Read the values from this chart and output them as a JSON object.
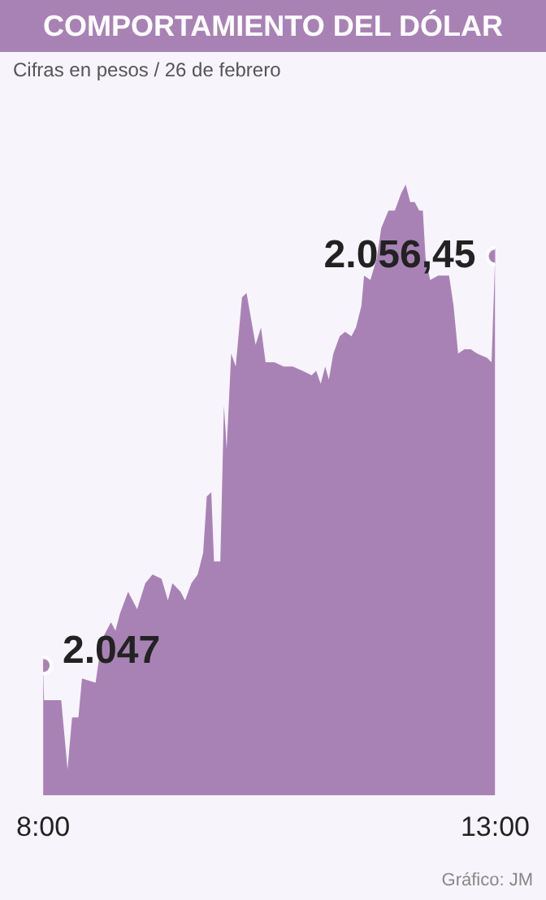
{
  "chart_data": {
    "type": "area",
    "title": "COMPORTAMIENTO DEL DÓLAR",
    "subtitle": "Cifras en pesos / 26 de febrero",
    "color": "#a882b5",
    "x": [
      8.0,
      8.01,
      8.2,
      8.27,
      8.32,
      8.39,
      8.43,
      8.58,
      8.65,
      8.75,
      8.8,
      8.85,
      8.94,
      9.04,
      9.13,
      9.21,
      9.31,
      9.38,
      9.43,
      9.52,
      9.57,
      9.64,
      9.71,
      9.77,
      9.81,
      9.86,
      9.89,
      9.96,
      10.0,
      10.03,
      10.08,
      10.13,
      10.2,
      10.25,
      10.3,
      10.35,
      10.41,
      10.46,
      10.56,
      10.66,
      10.76,
      10.87,
      10.97,
      11.02,
      11.07,
      11.12,
      11.16,
      11.21,
      11.28,
      11.34,
      11.41,
      11.46,
      11.52,
      11.55,
      11.62,
      11.69,
      11.74,
      11.82,
      11.89,
      11.96,
      12.01,
      12.06,
      12.11,
      12.16,
      12.2,
      12.23,
      12.28,
      12.37,
      12.49,
      12.54,
      12.59,
      12.66,
      12.73,
      12.8,
      12.91,
      12.96,
      13.0
    ],
    "values": [
      2047,
      2046.2,
      2046.2,
      2044.6,
      2045.8,
      2045.8,
      2046.7,
      2046.6,
      2047.6,
      2048.0,
      2047.8,
      2048.2,
      2048.7,
      2048.3,
      2048.9,
      2049.1,
      2049.0,
      2048.5,
      2048.9,
      2048.7,
      2048.5,
      2048.9,
      2049.1,
      2049.6,
      2050.9,
      2051.0,
      2049.4,
      2049.4,
      2053.0,
      2052.0,
      2054.2,
      2053.9,
      2055.5,
      2055.6,
      2055.0,
      2054.4,
      2054.8,
      2054.0,
      2054.0,
      2053.9,
      2053.9,
      2053.8,
      2053.7,
      2053.8,
      2053.5,
      2053.9,
      2053.6,
      2054.2,
      2054.6,
      2054.7,
      2054.6,
      2054.8,
      2055.3,
      2056.0,
      2055.9,
      2056.4,
      2057.1,
      2057.5,
      2057.5,
      2057.9,
      2058.1,
      2057.7,
      2057.7,
      2057.5,
      2057.5,
      2056.4,
      2055.9,
      2056.0,
      2056.0,
      2055.3,
      2054.2,
      2054.3,
      2054.3,
      2054.2,
      2054.1,
      2054.0,
      2056.45
    ],
    "value_labels": [
      "2.047",
      null,
      null,
      null,
      null,
      null,
      null,
      null,
      null,
      null,
      null,
      null,
      null,
      null,
      null,
      null,
      null,
      null,
      null,
      null,
      null,
      null,
      null,
      null,
      null,
      null,
      null,
      null,
      null,
      null,
      null,
      null,
      null,
      null,
      null,
      null,
      null,
      null,
      null,
      null,
      null,
      null,
      null,
      null,
      null,
      null,
      null,
      null,
      null,
      null,
      null,
      null,
      null,
      null,
      null,
      null,
      null,
      null,
      null,
      null,
      null,
      null,
      null,
      null,
      null,
      null,
      null,
      null,
      null,
      null,
      null,
      null,
      null,
      null,
      null,
      null,
      "2.056,45"
    ],
    "xlim": [
      8,
      13
    ],
    "xticks": [
      {
        "value": 8,
        "label": "8:00"
      },
      {
        "value": 13,
        "label": "13:00"
      }
    ],
    "tick_labels": "x",
    "grid": false,
    "legend": false,
    "annotations": [
      "Gráfico: JM"
    ]
  }
}
